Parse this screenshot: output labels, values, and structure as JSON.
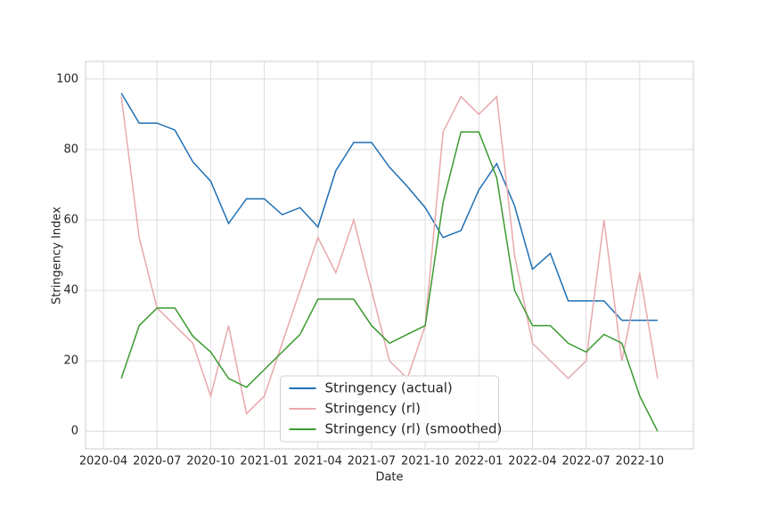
{
  "chart_data": {
    "type": "line",
    "x_label": "Date",
    "y_label": "Stringency Index",
    "x": [
      "2020-05",
      "2020-06",
      "2020-07",
      "2020-08",
      "2020-09",
      "2020-10",
      "2020-11",
      "2020-12",
      "2021-01",
      "2021-02",
      "2021-03",
      "2021-04",
      "2021-05",
      "2021-06",
      "2021-07",
      "2021-08",
      "2021-09",
      "2021-10",
      "2021-11",
      "2021-12",
      "2022-01",
      "2022-02",
      "2022-03",
      "2022-04",
      "2022-05",
      "2022-06",
      "2022-07",
      "2022-08",
      "2022-09",
      "2022-10",
      "2022-11"
    ],
    "series": [
      {
        "name": "Stringency (actual)",
        "color": "#1f6fb4",
        "values": [
          96,
          87.5,
          87.5,
          85.5,
          76.5,
          71,
          59,
          66,
          66,
          61.5,
          63.5,
          58,
          74,
          82,
          82,
          75,
          69.5,
          63.5,
          55,
          57,
          68.5,
          76,
          64,
          46,
          50.5,
          37,
          37,
          37,
          31.5,
          31.5,
          31.5
        ]
      },
      {
        "name": "Stringency (rl)",
        "color": "#e8a9ad",
        "values": [
          95,
          55,
          35,
          30,
          25,
          10,
          30,
          5,
          10,
          25,
          40,
          55,
          45,
          60,
          40,
          20,
          15,
          30,
          85,
          95,
          90,
          95,
          50,
          25,
          20,
          15,
          20,
          60,
          20,
          45,
          15
        ]
      },
      {
        "name": "Stringency (rl) (smoothed)",
        "color": "#3a9a2e",
        "values": [
          15,
          30,
          35,
          35,
          27,
          22.5,
          15,
          12.5,
          17.5,
          22.5,
          27.5,
          37.5,
          37.5,
          37.5,
          30,
          25,
          27.5,
          30,
          65,
          85,
          85,
          72,
          40,
          30,
          30,
          25,
          22.5,
          27.5,
          25,
          10,
          0
        ]
      }
    ],
    "xlim": [
      "2020-03",
      "2023-01"
    ],
    "xticks": [
      "2020-04",
      "2020-07",
      "2020-10",
      "2021-01",
      "2021-04",
      "2021-07",
      "2021-10",
      "2022-01",
      "2022-04",
      "2022-07",
      "2022-10"
    ],
    "ylim": [
      -5,
      105
    ],
    "yticks": [
      0,
      20,
      40,
      60,
      80,
      100
    ],
    "grid": true,
    "legend": "lower center"
  }
}
